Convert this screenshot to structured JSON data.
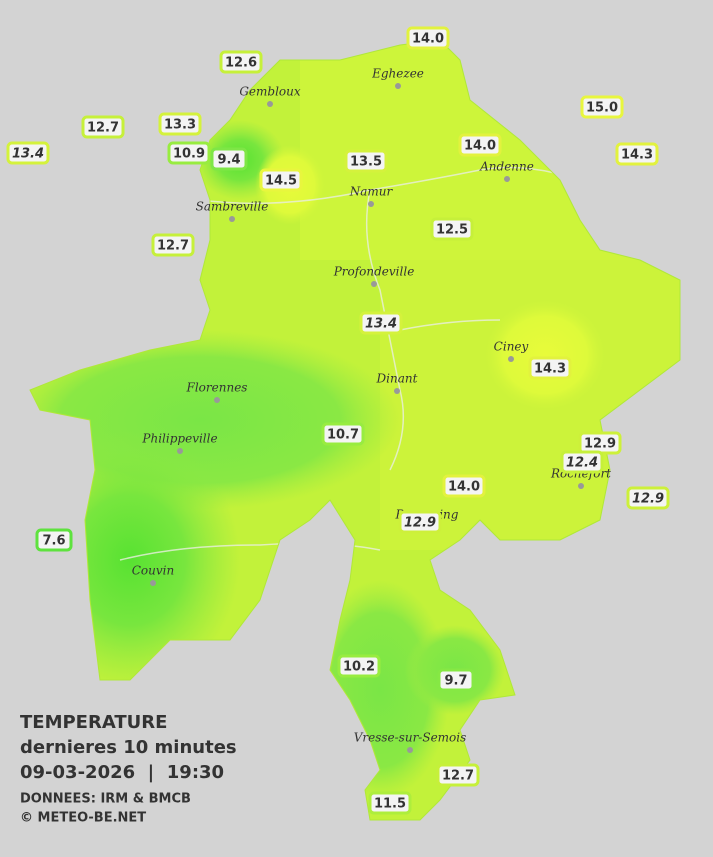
{
  "legend": {
    "title": "TEMPERATURE",
    "subtitle": "dernieres 10 minutes",
    "timestamp": "09-03-2026  |  19:30",
    "source": "DONNEES: IRM & BMCB",
    "copyright": "© METEO-BE.NET"
  },
  "cities": [
    {
      "name": "Eghezee"
    },
    {
      "name": "Gembloux"
    },
    {
      "name": "Andenne"
    },
    {
      "name": "Namur"
    },
    {
      "name": "Sambreville"
    },
    {
      "name": "Profondeville"
    },
    {
      "name": "Ciney"
    },
    {
      "name": "Dinant"
    },
    {
      "name": "Florennes"
    },
    {
      "name": "Philippeville"
    },
    {
      "name": "Rochefort"
    },
    {
      "name": "Beauraing"
    },
    {
      "name": "Couvin"
    },
    {
      "name": "Vresse-sur-Semois"
    }
  ],
  "stations": [
    {
      "label": "14.0",
      "color": "#e2f23e"
    },
    {
      "label": "12.6",
      "color": "#c6f03a"
    },
    {
      "label": "15.0",
      "color": "#e8f63e"
    },
    {
      "label": "12.7",
      "color": "#c6f03a"
    },
    {
      "label": "13.3",
      "color": "#d4f23c"
    },
    {
      "label": "13.4",
      "color": "#d4f23c",
      "italic": true
    },
    {
      "label": "10.9",
      "color": "#98ec40"
    },
    {
      "label": "9.4",
      "color": "#7ee646"
    },
    {
      "label": "14.0",
      "color": "#e2f23e"
    },
    {
      "label": "14.3",
      "color": "#e2f23e"
    },
    {
      "label": "13.5",
      "color": "#d4f23c"
    },
    {
      "label": "14.5",
      "color": "#e8f63e"
    },
    {
      "label": "12.5",
      "color": "#c6f03a"
    },
    {
      "label": "12.7",
      "color": "#c6f03a"
    },
    {
      "label": "13.4",
      "color": "#d4f23c",
      "italic": true
    },
    {
      "label": "14.3",
      "color": "#e2f23e"
    },
    {
      "label": "10.7",
      "color": "#98ec40"
    },
    {
      "label": "12.9",
      "color": "#cdf03a"
    },
    {
      "label": "12.4",
      "color": "#c6f03a",
      "italic": true
    },
    {
      "label": "12.9",
      "color": "#cdf03a",
      "italic": true
    },
    {
      "label": "14.0",
      "color": "#e2f23e"
    },
    {
      "label": "12.9",
      "color": "#cdf03a",
      "italic": true
    },
    {
      "label": "7.6",
      "color": "#5ee23e"
    },
    {
      "label": "10.2",
      "color": "#98ec40"
    },
    {
      "label": "9.7",
      "color": "#86e844"
    },
    {
      "label": "12.7",
      "color": "#c6f03a"
    },
    {
      "label": "11.5",
      "color": "#aeee3c"
    }
  ]
}
